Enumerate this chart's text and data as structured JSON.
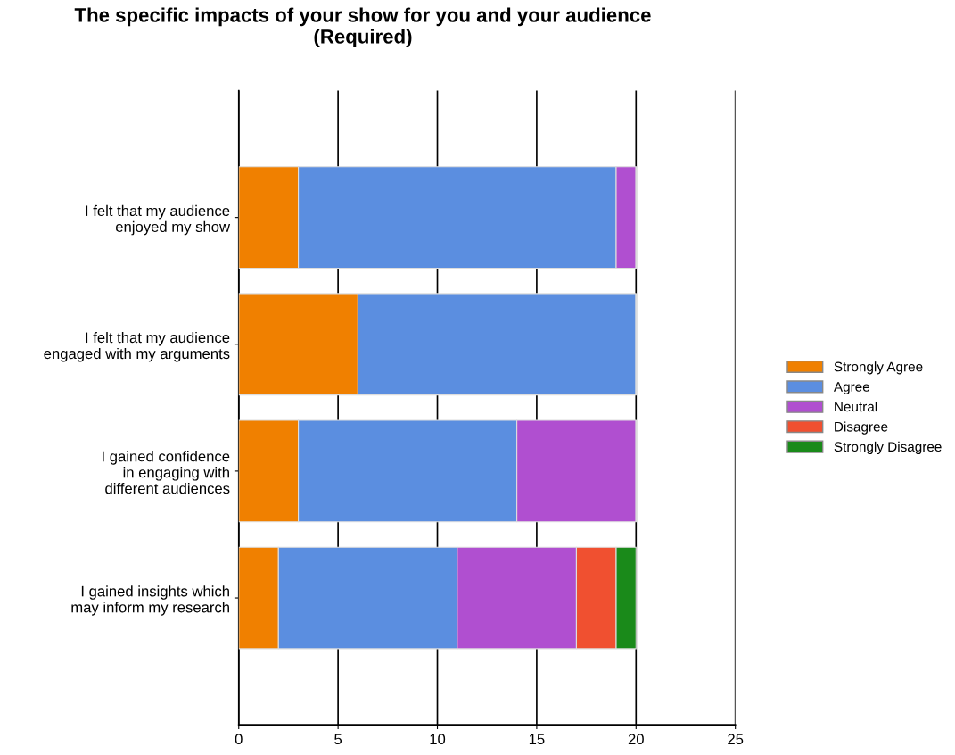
{
  "chart_data": {
    "type": "bar",
    "orientation": "horizontal",
    "stacked": true,
    "title": "The specific impacts of your show for you and your audience\n(Required)",
    "categories": [
      "I felt that my audience\nenjoyed my show",
      "I felt that my audience\nengaged with my arguments",
      "I gained confidence\nin engaging with\ndifferent audiences",
      "I gained insights which\nmay inform my research"
    ],
    "series": [
      {
        "name": "Strongly Agree",
        "color": "#f08000",
        "values": [
          3,
          6,
          3,
          2
        ]
      },
      {
        "name": "Agree",
        "color": "#5b8ee0",
        "values": [
          16,
          14,
          11,
          9
        ]
      },
      {
        "name": "Neutral",
        "color": "#b04fd0",
        "values": [
          1,
          0,
          6,
          6
        ]
      },
      {
        "name": "Disagree",
        "color": "#f05030",
        "values": [
          0,
          0,
          0,
          2
        ]
      },
      {
        "name": "Strongly Disagree",
        "color": "#1a8a1a",
        "values": [
          0,
          0,
          0,
          1
        ]
      }
    ],
    "xlim": [
      0,
      25
    ],
    "xticks": [
      0,
      5,
      10,
      15,
      20,
      25
    ],
    "grid": "x",
    "legend": "right"
  }
}
